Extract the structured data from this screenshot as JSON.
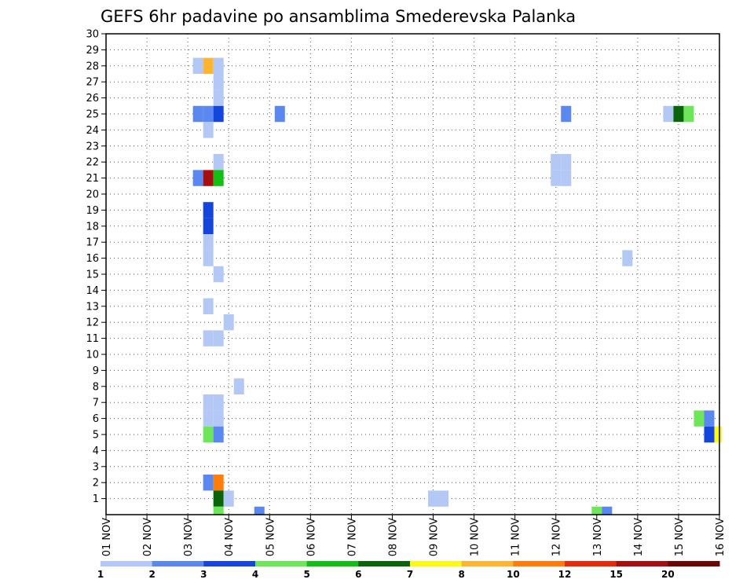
{
  "chart_data": {
    "type": "heatmap",
    "title": "GEFS 6hr padavine po ansamblima Smederevska Palanka",
    "xlabel": "",
    "ylabel": "",
    "x_tick_labels": [
      "01 NOV",
      "02 NOV",
      "03 NOV",
      "04 NOV",
      "05 NOV",
      "06 NOV",
      "07 NOV",
      "08 NOV",
      "09 NOV",
      "10 NOV",
      "11 NOV",
      "12 NOV",
      "13 NOV",
      "14 NOV",
      "15 NOV",
      "16 NOV"
    ],
    "y_tick_labels": [
      "1",
      "2",
      "3",
      "4",
      "5",
      "6",
      "7",
      "8",
      "9",
      "10",
      "11",
      "12",
      "13",
      "14",
      "15",
      "16",
      "17",
      "18",
      "19",
      "20",
      "21",
      "22",
      "23",
      "24",
      "25",
      "26",
      "27",
      "28",
      "29",
      "30"
    ],
    "xlim": [
      0,
      60
    ],
    "ylim": [
      0,
      30
    ],
    "x_unit": "6-hour steps from 01 NOV 00Z",
    "y_unit": "ensemble member",
    "legend": {
      "boundary_labels": [
        "1",
        "2",
        "3",
        "4",
        "5",
        "6",
        "7",
        "8",
        "10",
        "12",
        "15",
        "20"
      ],
      "colors": [
        "#b4c8f5",
        "#5a87f0",
        "#1446dc",
        "#6ee65a",
        "#14be14",
        "#0a640a",
        "#fffa14",
        "#ffb432",
        "#ff7d0a",
        "#e12d0a",
        "#a50f0f",
        "#6e0505"
      ]
    },
    "cells": [
      {
        "t": 9,
        "m": 28,
        "v": 1.5
      },
      {
        "t": 10,
        "m": 28,
        "v": 9
      },
      {
        "t": 11,
        "m": 28,
        "v": 1.5
      },
      {
        "t": 11,
        "m": 27,
        "v": 1.5
      },
      {
        "t": 11,
        "m": 26,
        "v": 1.5
      },
      {
        "t": 9,
        "m": 25,
        "v": 2.5
      },
      {
        "t": 10,
        "m": 25,
        "v": 2.5
      },
      {
        "t": 11,
        "m": 25,
        "v": 3.5
      },
      {
        "t": 17,
        "m": 25,
        "v": 2.5
      },
      {
        "t": 45,
        "m": 25,
        "v": 2.5
      },
      {
        "t": 55,
        "m": 25,
        "v": 1.5
      },
      {
        "t": 56,
        "m": 25,
        "v": 6.5
      },
      {
        "t": 57,
        "m": 25,
        "v": 4.5
      },
      {
        "t": 10,
        "m": 24,
        "v": 1.5
      },
      {
        "t": 11,
        "m": 22,
        "v": 1.5
      },
      {
        "t": 44,
        "m": 22,
        "v": 1.5
      },
      {
        "t": 45,
        "m": 22,
        "v": 1.5
      },
      {
        "t": 9,
        "m": 21,
        "v": 2.5
      },
      {
        "t": 10,
        "m": 21,
        "v": 17
      },
      {
        "t": 11,
        "m": 21,
        "v": 5.5
      },
      {
        "t": 44,
        "m": 21,
        "v": 1.5
      },
      {
        "t": 45,
        "m": 21,
        "v": 1.5
      },
      {
        "t": 10,
        "m": 19,
        "v": 3.5
      },
      {
        "t": 10,
        "m": 18,
        "v": 3.5
      },
      {
        "t": 10,
        "m": 17,
        "v": 1.5
      },
      {
        "t": 10,
        "m": 16,
        "v": 1.5
      },
      {
        "t": 51,
        "m": 16,
        "v": 1.5
      },
      {
        "t": 11,
        "m": 15,
        "v": 1.5
      },
      {
        "t": 10,
        "m": 13,
        "v": 1.5
      },
      {
        "t": 12,
        "m": 12,
        "v": 1.5
      },
      {
        "t": 10,
        "m": 11,
        "v": 1.5
      },
      {
        "t": 11,
        "m": 11,
        "v": 1.5
      },
      {
        "t": 13,
        "m": 8,
        "v": 1.5
      },
      {
        "t": 10,
        "m": 7,
        "v": 1.5
      },
      {
        "t": 11,
        "m": 7,
        "v": 1.5
      },
      {
        "t": 10,
        "m": 6,
        "v": 1.5
      },
      {
        "t": 11,
        "m": 6,
        "v": 1.5
      },
      {
        "t": 58,
        "m": 6,
        "v": 4.5
      },
      {
        "t": 59,
        "m": 6,
        "v": 2.5
      },
      {
        "t": 10,
        "m": 5,
        "v": 4.5
      },
      {
        "t": 11,
        "m": 5,
        "v": 2.5
      },
      {
        "t": 59,
        "m": 5,
        "v": 3.5
      },
      {
        "t": 60,
        "m": 5,
        "v": 7.5
      },
      {
        "t": 10,
        "m": 2,
        "v": 2.5
      },
      {
        "t": 11,
        "m": 2,
        "v": 11
      },
      {
        "t": 11,
        "m": 1,
        "v": 6.5
      },
      {
        "t": 12,
        "m": 1,
        "v": 1.5
      },
      {
        "t": 32,
        "m": 1,
        "v": 1.5
      },
      {
        "t": 33,
        "m": 1,
        "v": 1.5
      },
      {
        "t": 11,
        "m": 0,
        "v": 4.5
      },
      {
        "t": 15,
        "m": 0,
        "v": 2.5
      },
      {
        "t": 48,
        "m": 0,
        "v": 4.5
      },
      {
        "t": 49,
        "m": 0,
        "v": 2.5
      }
    ]
  }
}
